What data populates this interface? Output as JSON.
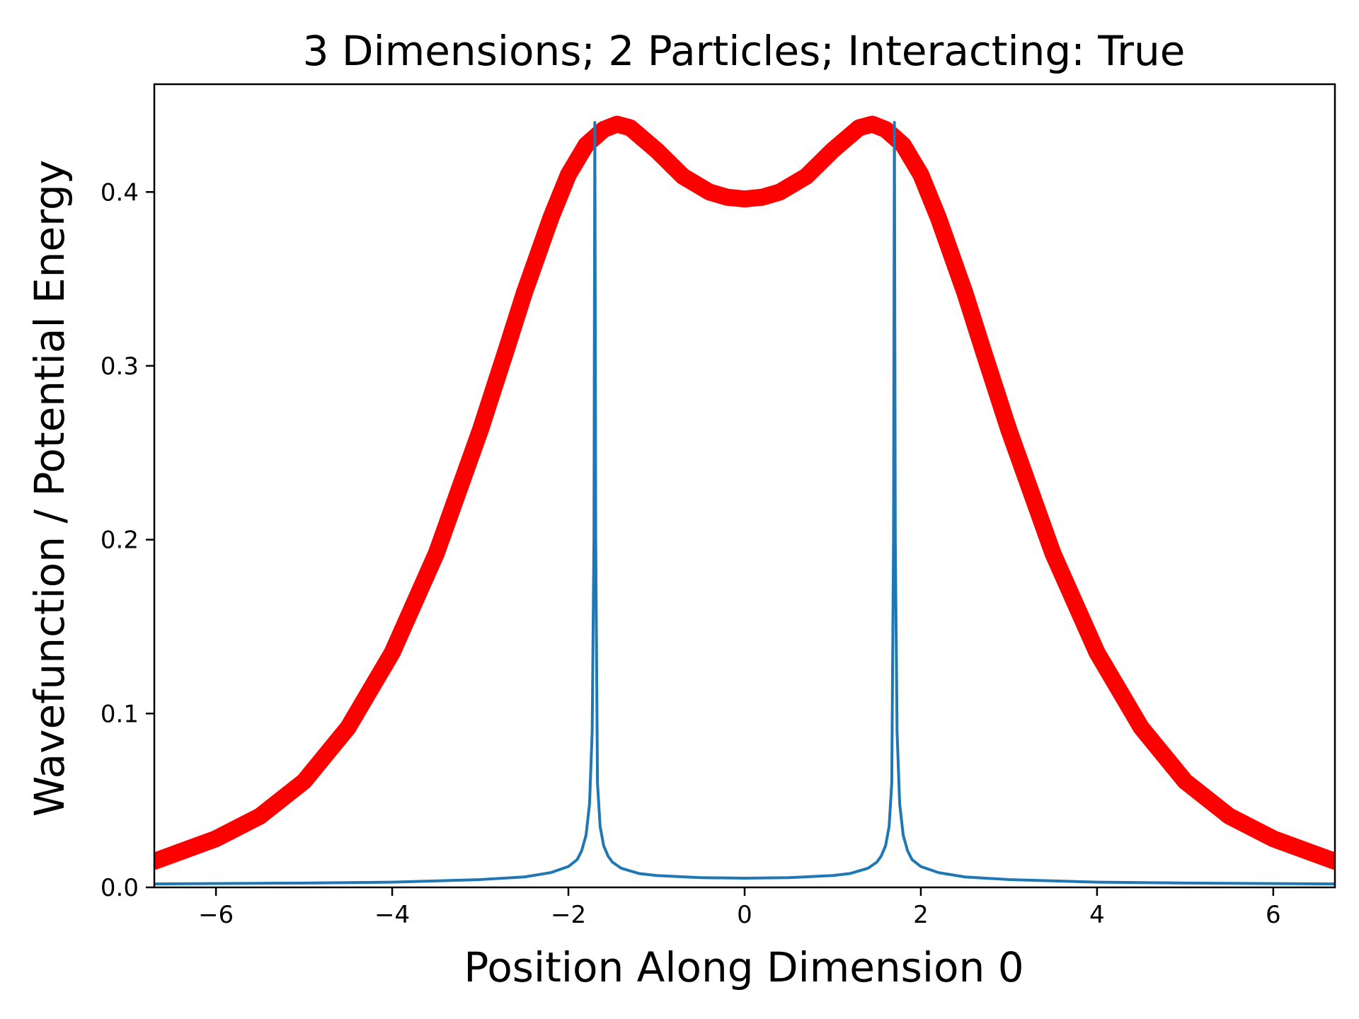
{
  "chart_data": {
    "type": "line",
    "title": "3 Dimensions; 2 Particles; Interacting: True",
    "xlabel": "Position Along Dimension 0",
    "ylabel": "Wavefunction / Potential Energy",
    "xlim": [
      -6.7,
      6.7
    ],
    "ylim": [
      0.0,
      0.462
    ],
    "xticks": [
      -6,
      -4,
      -2,
      0,
      2,
      4,
      6
    ],
    "xtick_labels": [
      "−6",
      "−4",
      "−2",
      "0",
      "2",
      "4",
      "6"
    ],
    "yticks": [
      0.0,
      0.1,
      0.2,
      0.3,
      0.4
    ],
    "ytick_labels": [
      "0.0",
      "0.1",
      "0.2",
      "0.3",
      "0.4"
    ],
    "grid": false,
    "legend": "none",
    "series": [
      {
        "color": "#ff0000",
        "style": "thick",
        "x": [
          -6.7,
          -6.0,
          -5.5,
          -5.0,
          -4.5,
          -4.0,
          -3.5,
          -3.0,
          -2.7,
          -2.5,
          -2.2,
          -2.0,
          -1.8,
          -1.6,
          -1.45,
          -1.3,
          -1.0,
          -0.7,
          -0.4,
          -0.2,
          0.0,
          0.2,
          0.4,
          0.7,
          1.0,
          1.3,
          1.45,
          1.6,
          1.8,
          2.0,
          2.2,
          2.5,
          2.7,
          3.0,
          3.5,
          4.0,
          4.5,
          5.0,
          5.5,
          6.0,
          6.7
        ],
        "y": [
          0.015,
          0.028,
          0.041,
          0.061,
          0.092,
          0.135,
          0.192,
          0.263,
          0.31,
          0.342,
          0.385,
          0.41,
          0.427,
          0.436,
          0.439,
          0.437,
          0.424,
          0.409,
          0.4,
          0.397,
          0.396,
          0.397,
          0.4,
          0.409,
          0.424,
          0.437,
          0.439,
          0.436,
          0.427,
          0.41,
          0.385,
          0.342,
          0.31,
          0.263,
          0.192,
          0.135,
          0.092,
          0.061,
          0.041,
          0.028,
          0.015
        ]
      },
      {
        "color": "#1f77b4",
        "style": "thin",
        "x": [
          -6.7,
          -5.0,
          -4.0,
          -3.0,
          -2.5,
          -2.2,
          -2.0,
          -1.9,
          -1.85,
          -1.8,
          -1.76,
          -1.73,
          -1.71,
          -1.7,
          -1.69,
          -1.67,
          -1.64,
          -1.6,
          -1.55,
          -1.5,
          -1.4,
          -1.2,
          -1.0,
          -0.5,
          0.0,
          0.5,
          1.0,
          1.2,
          1.4,
          1.5,
          1.55,
          1.6,
          1.64,
          1.67,
          1.69,
          1.7,
          1.71,
          1.73,
          1.76,
          1.8,
          1.85,
          1.9,
          2.0,
          2.2,
          2.5,
          3.0,
          4.0,
          5.0,
          6.7
        ],
        "y": [
          0.002,
          0.0025,
          0.003,
          0.0045,
          0.006,
          0.0085,
          0.012,
          0.016,
          0.021,
          0.03,
          0.048,
          0.09,
          0.2,
          0.44,
          0.2,
          0.06,
          0.035,
          0.024,
          0.018,
          0.0145,
          0.011,
          0.008,
          0.0068,
          0.0056,
          0.0053,
          0.0056,
          0.0068,
          0.008,
          0.011,
          0.0145,
          0.018,
          0.024,
          0.035,
          0.06,
          0.2,
          0.44,
          0.2,
          0.09,
          0.048,
          0.03,
          0.021,
          0.016,
          0.012,
          0.0085,
          0.006,
          0.0045,
          0.003,
          0.0025,
          0.002
        ]
      }
    ]
  }
}
